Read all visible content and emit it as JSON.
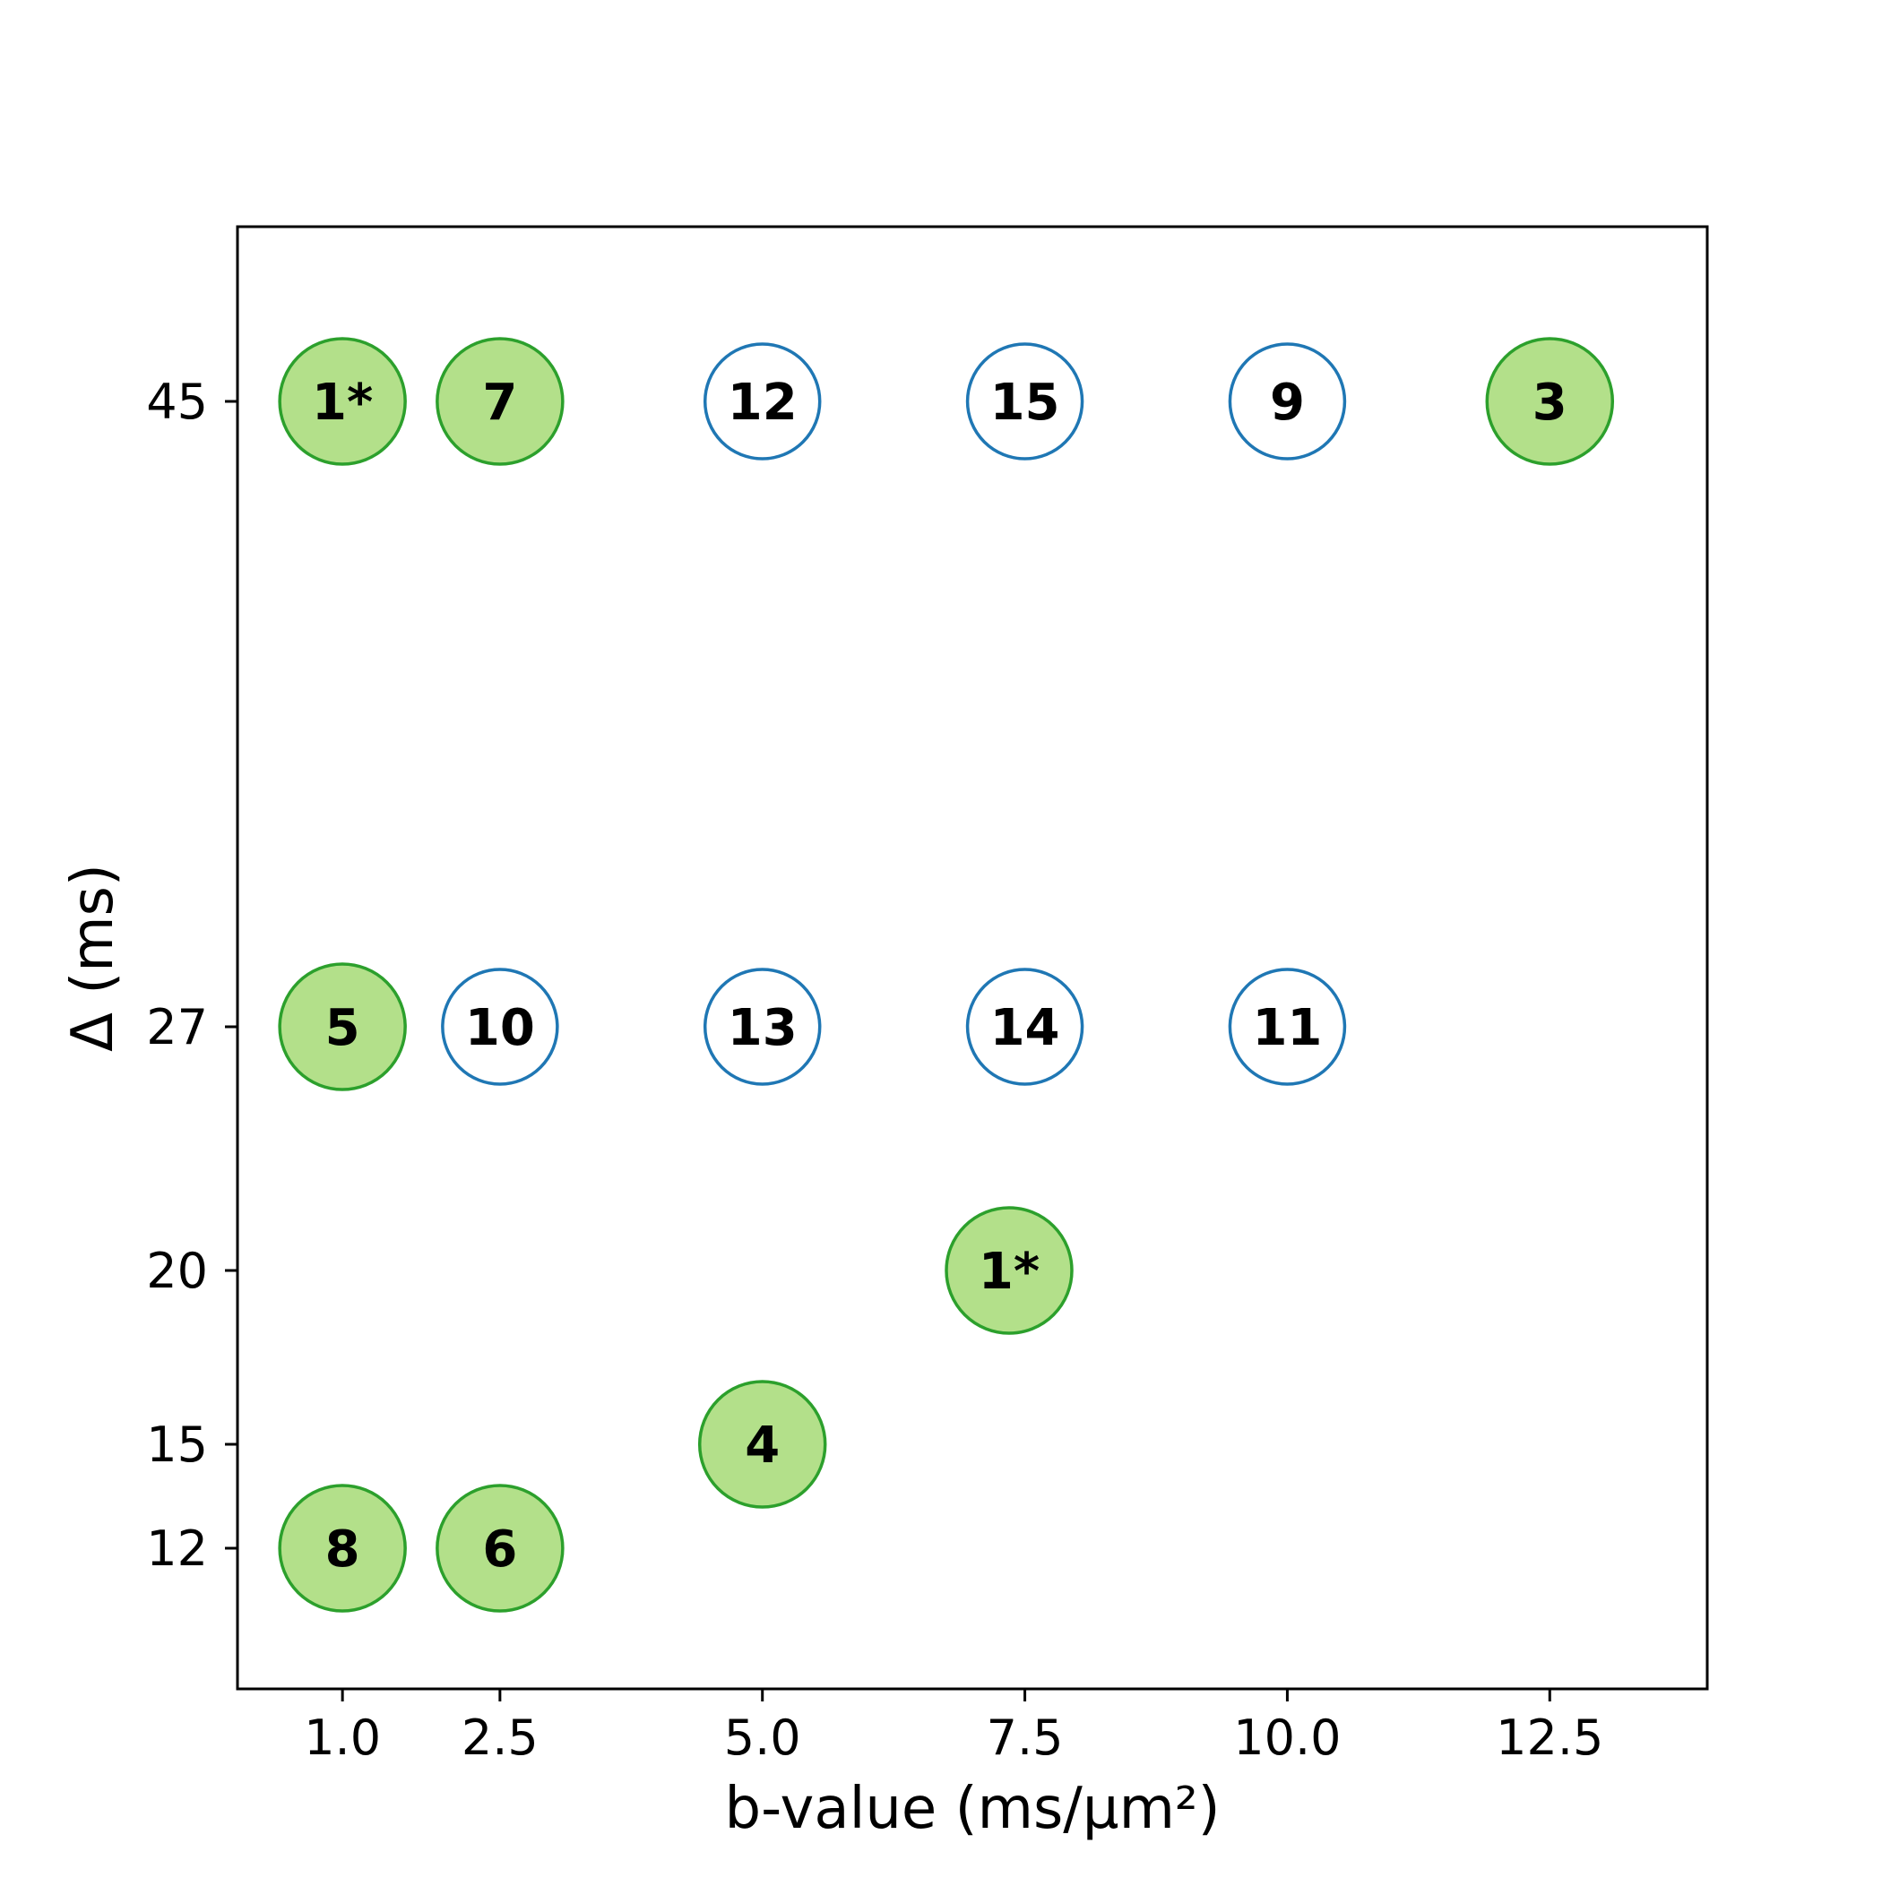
{
  "chart_data": {
    "type": "scatter",
    "title": "",
    "xlabel": "b-value (ms/µm²)",
    "ylabel": "Δ (ms)",
    "x_ticks": [
      "1.0",
      "2.5",
      "5.0",
      "7.5",
      "10.0",
      "12.5"
    ],
    "y_ticks": [
      "12",
      "15",
      "20",
      "27",
      "45"
    ],
    "xlim": [
      0.0,
      14.0
    ],
    "y_scale": "categorical-spaced",
    "grid": false,
    "legend": "none",
    "colors": {
      "filled_fill": "#b3e08a",
      "filled_edge": "#2ca02c",
      "open_fill": "#ffffff",
      "open_edge": "#1f77b4"
    },
    "points": [
      {
        "label": "1*",
        "b": 1.0,
        "delta": 45,
        "style": "filled"
      },
      {
        "label": "7",
        "b": 2.5,
        "delta": 45,
        "style": "filled"
      },
      {
        "label": "12",
        "b": 5.0,
        "delta": 45,
        "style": "open"
      },
      {
        "label": "15",
        "b": 7.5,
        "delta": 45,
        "style": "open"
      },
      {
        "label": "9",
        "b": 10.0,
        "delta": 45,
        "style": "open"
      },
      {
        "label": "3",
        "b": 12.5,
        "delta": 45,
        "style": "filled"
      },
      {
        "label": "5",
        "b": 1.0,
        "delta": 27,
        "style": "filled"
      },
      {
        "label": "10",
        "b": 2.5,
        "delta": 27,
        "style": "open"
      },
      {
        "label": "13",
        "b": 5.0,
        "delta": 27,
        "style": "open"
      },
      {
        "label": "14",
        "b": 7.5,
        "delta": 27,
        "style": "open"
      },
      {
        "label": "11",
        "b": 10.0,
        "delta": 27,
        "style": "open"
      },
      {
        "label": "1*",
        "b": 7.35,
        "delta": 20,
        "style": "filled"
      },
      {
        "label": "4",
        "b": 5.0,
        "delta": 15,
        "style": "filled"
      },
      {
        "label": "8",
        "b": 1.0,
        "delta": 12,
        "style": "filled"
      },
      {
        "label": "6",
        "b": 2.5,
        "delta": 12,
        "style": "filled"
      }
    ]
  }
}
